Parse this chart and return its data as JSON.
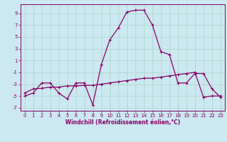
{
  "xlabel": "Windchill (Refroidissement éolien,°C)",
  "bg_color": "#cce8f0",
  "grid_color": "#b0d8d0",
  "line_color": "#880066",
  "xlim": [
    -0.5,
    23.5
  ],
  "ylim": [
    -7.5,
    10.5
  ],
  "xticks": [
    0,
    1,
    2,
    3,
    4,
    5,
    6,
    7,
    8,
    9,
    10,
    11,
    12,
    13,
    14,
    15,
    16,
    17,
    18,
    19,
    20,
    21,
    22,
    23
  ],
  "yticks": [
    -7,
    -5,
    -3,
    -1,
    1,
    3,
    5,
    7,
    9
  ],
  "curve1_x": [
    0,
    1,
    2,
    3,
    4,
    5,
    6,
    7,
    8,
    9,
    10,
    11,
    12,
    13,
    14,
    15,
    16,
    17,
    18,
    19,
    20,
    21,
    22,
    23
  ],
  "curve1_y": [
    -5.0,
    -4.5,
    -2.8,
    -2.8,
    -4.5,
    -5.5,
    -2.8,
    -2.8,
    -6.5,
    0.3,
    4.5,
    6.5,
    9.2,
    9.5,
    9.5,
    7.0,
    2.5,
    2.0,
    -2.8,
    -2.8,
    -1.2,
    -1.2,
    -3.8,
    -5.2
  ],
  "curve2_x": [
    0,
    1,
    2,
    3,
    4,
    5,
    6,
    7,
    8,
    9,
    10,
    11,
    12,
    13,
    14,
    15,
    16,
    17,
    18,
    19,
    20,
    21,
    22,
    23
  ],
  "curve2_y": [
    -4.5,
    -3.8,
    -3.7,
    -3.5,
    -3.5,
    -3.3,
    -3.3,
    -3.2,
    -3.2,
    -3.0,
    -2.8,
    -2.6,
    -2.4,
    -2.2,
    -2.0,
    -2.0,
    -1.8,
    -1.6,
    -1.4,
    -1.2,
    -1.0,
    -5.2,
    -5.0,
    -5.0
  ],
  "tick_fontsize": 5.0,
  "label_fontsize": 5.5
}
